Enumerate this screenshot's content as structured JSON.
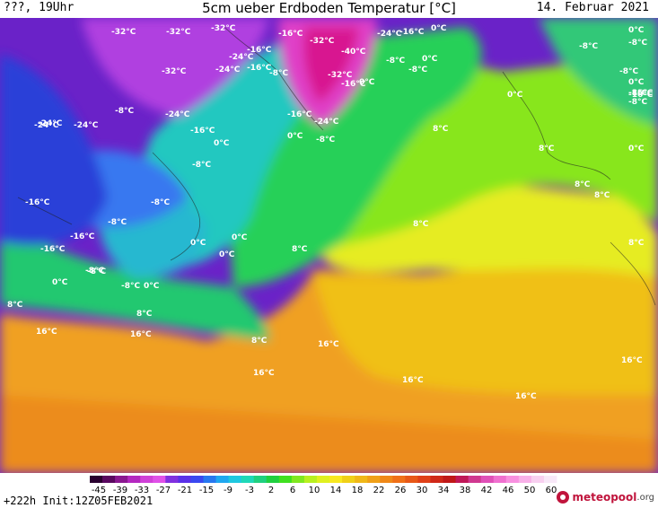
{
  "header": {
    "left_label": "???, 19Uhr",
    "title": "5cm ueber Erdboden Temperatur [°C]",
    "date": "14. Februar 2021"
  },
  "footer": {
    "run_info": "+222h  Init:12Z05FEB2021",
    "brand_name": "meteopool",
    "brand_tld": ".org"
  },
  "legend": {
    "ticks": [
      "-45",
      "-39",
      "-33",
      "-27",
      "-21",
      "-15",
      "-9",
      "-3",
      "2",
      "6",
      "10",
      "14",
      "18",
      "22",
      "26",
      "30",
      "34",
      "38",
      "42",
      "46",
      "50",
      "60"
    ],
    "colors": [
      "#2a0030",
      "#5a0860",
      "#8a1890",
      "#b428c0",
      "#d040d8",
      "#e050e8",
      "#8030e0",
      "#5a30e8",
      "#3a48f0",
      "#2878f0",
      "#20a8f0",
      "#20c8e0",
      "#20d8b8",
      "#20d080",
      "#20d040",
      "#40e020",
      "#80e820",
      "#b8f020",
      "#e0f020",
      "#f8e820",
      "#f0d018",
      "#f0b818",
      "#f0a018",
      "#f08818",
      "#f07018",
      "#e85818",
      "#e04018",
      "#d02818",
      "#c01818",
      "#c01858",
      "#d03890",
      "#e050b8",
      "#f070d0",
      "#f890e0",
      "#f8b0e8",
      "#f8d0f0",
      "#f8e8f8"
    ]
  },
  "map_labels": [
    {
      "text": "-32°C"
    },
    {
      "text": "-32°C"
    },
    {
      "text": "-32°C"
    },
    {
      "text": "-16°C"
    },
    {
      "text": "-32°C"
    },
    {
      "text": "-24°C"
    },
    {
      "text": "-16°C"
    },
    {
      "text": "0°C"
    },
    {
      "text": "0°C"
    },
    {
      "text": "-8°C"
    },
    {
      "text": "-8°C"
    },
    {
      "text": "-24°C"
    },
    {
      "text": "-16°C"
    },
    {
      "text": "-40°C"
    },
    {
      "text": "-8°C"
    },
    {
      "text": "0°C"
    },
    {
      "text": "-8°C"
    },
    {
      "text": "-32°C"
    },
    {
      "text": "-24°C"
    },
    {
      "text": "-16°C"
    },
    {
      "text": "-8°C"
    },
    {
      "text": "-8°C"
    },
    {
      "text": "0°C"
    },
    {
      "text": "-8°C"
    },
    {
      "text": "-32°C"
    },
    {
      "text": "-16°C"
    },
    {
      "text": "0°C"
    },
    {
      "text": "-8°C"
    },
    {
      "text": "0°C"
    },
    {
      "text": "-24°C"
    },
    {
      "text": "-24°C"
    },
    {
      "text": "-24°C"
    },
    {
      "text": "-24°C"
    },
    {
      "text": "-16°C"
    },
    {
      "text": "-24°C"
    },
    {
      "text": "-16°C"
    },
    {
      "text": "0°C"
    },
    {
      "text": "-8°C"
    },
    {
      "text": "8°C"
    },
    {
      "text": "8°C"
    },
    {
      "text": "-16°C"
    },
    {
      "text": "-8°C"
    },
    {
      "text": "0°C"
    },
    {
      "text": "-8°C"
    },
    {
      "text": "-16°C"
    },
    {
      "text": "-8°C"
    },
    {
      "text": "8°C"
    },
    {
      "text": "8°C"
    },
    {
      "text": "-16°C"
    },
    {
      "text": "-16°C"
    },
    {
      "text": "-8°C"
    },
    {
      "text": "8°C"
    },
    {
      "text": "0°C"
    },
    {
      "text": "0°C"
    },
    {
      "text": "0°C"
    },
    {
      "text": "8°C"
    },
    {
      "text": "-8°C"
    },
    {
      "text": "0°C"
    },
    {
      "text": "-8°C"
    },
    {
      "text": "-8°C"
    },
    {
      "text": "0°C"
    },
    {
      "text": "8°C"
    },
    {
      "text": "8°C"
    },
    {
      "text": "8°C"
    },
    {
      "text": "16°C"
    },
    {
      "text": "16°C"
    },
    {
      "text": "8°C"
    },
    {
      "text": "16°C"
    },
    {
      "text": "16°C"
    },
    {
      "text": "16°C"
    },
    {
      "text": "16°C"
    },
    {
      "text": "16°C"
    },
    {
      "text": "0°C"
    },
    {
      "text": "-16°C"
    }
  ]
}
